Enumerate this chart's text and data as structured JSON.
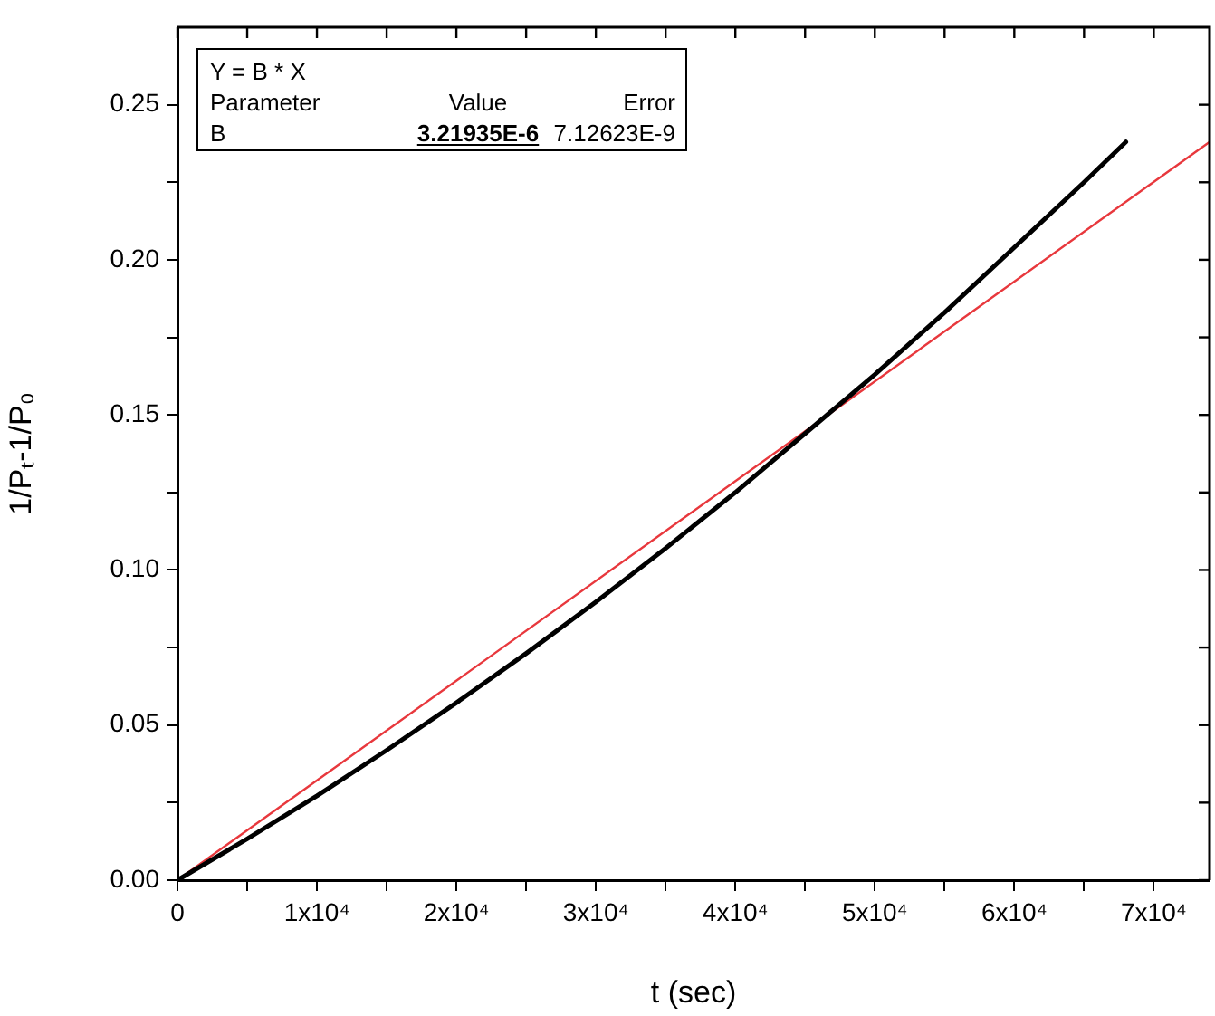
{
  "chart_data": {
    "type": "line",
    "xlabel": "t (sec)",
    "ylabel": "1/Pₜ-1/P₀",
    "annotations": [
      "Y = B * X",
      "Parameter",
      "Value",
      "Error",
      "B",
      "3.21935E-6",
      "7.12623E-9"
    ],
    "series": [
      {
        "color": "#000000",
        "x": [
          0,
          5000,
          10000,
          15000,
          20000,
          25000,
          30000,
          35000,
          40000,
          45000,
          50000,
          55000,
          60000,
          65000,
          68000
        ],
        "values": [
          0,
          0.0133,
          0.0272,
          0.0419,
          0.0572,
          0.0731,
          0.0897,
          0.107,
          0.125,
          0.144,
          0.163,
          0.183,
          0.204,
          0.225,
          0.238
        ]
      },
      {
        "color": "#e8383d",
        "x": [
          0,
          74000
        ],
        "values": [
          0,
          0.238
        ]
      }
    ],
    "xlim": [
      0,
      74000
    ],
    "ylim": [
      0,
      0.275
    ],
    "xticks": [
      0,
      {
        "value": 5000,
        "label": null
      },
      {
        "value": 10000,
        "label": "1x10⁴"
      },
      {
        "value": 15000,
        "label": null
      },
      {
        "value": 20000,
        "label": "2x10⁴"
      },
      {
        "value": 25000,
        "label": null
      },
      {
        "value": 30000,
        "label": "3x10⁴"
      },
      {
        "value": 35000,
        "label": null
      },
      {
        "value": 40000,
        "label": "4x10⁴"
      },
      {
        "value": 45000,
        "label": null
      },
      {
        "value": 50000,
        "label": "5x10⁴"
      },
      {
        "value": 55000,
        "label": null
      },
      {
        "value": 60000,
        "label": "6x10⁴"
      },
      {
        "value": 65000,
        "label": null
      },
      {
        "value": 70000,
        "label": "7x10⁴"
      }
    ],
    "yticks": [
      {
        "value": 0,
        "label": "0.00"
      },
      {
        "value": 0.025,
        "label": null
      },
      {
        "value": 0.05,
        "label": "0.05"
      },
      {
        "value": 0.075,
        "label": null
      },
      {
        "value": 0.1,
        "label": "0.10"
      },
      {
        "value": 0.125,
        "label": null
      },
      {
        "value": 0.15,
        "label": "0.15"
      },
      {
        "value": 0.175,
        "label": null
      },
      {
        "value": 0.2,
        "label": "0.20"
      },
      {
        "value": 0.225,
        "label": null
      },
      {
        "value": 0.25,
        "label": "0.25"
      }
    ],
    "grid": false,
    "legend": false,
    "marker": "none",
    "line_style": "solid"
  }
}
